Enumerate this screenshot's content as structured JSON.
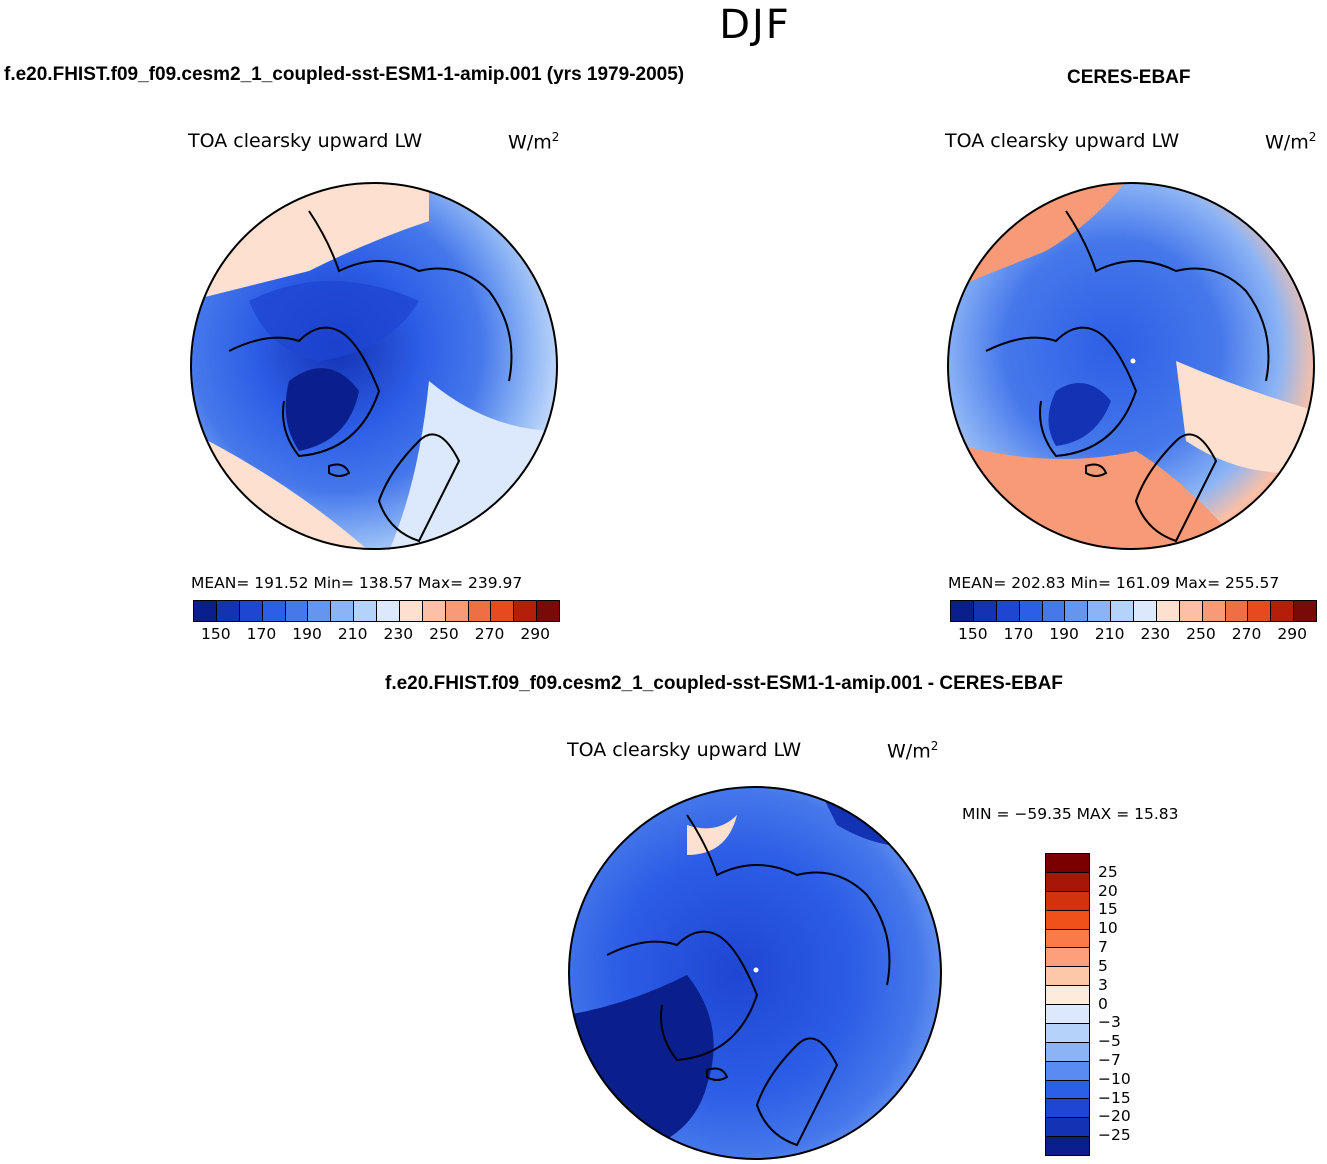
{
  "figure": {
    "season": "DJF"
  },
  "panels": [
    {
      "title": "f.e20.FHIST.f09_f09.cesm2_1_coupled-sst-ESM1-1-amip.001 (yrs 1979-2005)",
      "variable": "TOA clearsky upward LW",
      "units_base": "W/m",
      "units_sup": "2",
      "mean": "191.52",
      "min": "138.57",
      "max": "239.97",
      "stats_text": "MEAN= 191.52   Min= 138.57   Max= 239.97"
    },
    {
      "title": "CERES-EBAF",
      "variable": "TOA clearsky upward LW",
      "units_base": "W/m",
      "units_sup": "2",
      "mean": "202.83",
      "min": "161.09",
      "max": "255.57",
      "stats_text": "MEAN= 202.83   Min= 161.09   Max= 255.57"
    },
    {
      "title": "f.e20.FHIST.f09_f09.cesm2_1_coupled-sst-ESM1-1-amip.001 - CERES-EBAF",
      "variable": "TOA clearsky upward LW",
      "units_base": "W/m",
      "units_sup": "2",
      "min": "-59.35",
      "max": "15.83",
      "stats_text": "MIN = −59.35 MAX =   15.83"
    }
  ],
  "colorbars": {
    "absolute": {
      "colors": [
        "#0a1e8c",
        "#1432b4",
        "#1e46d2",
        "#2d5ee6",
        "#4678eb",
        "#6496f0",
        "#8cb4f5",
        "#b4d2fa",
        "#dce9fc",
        "#fde0cf",
        "#fbc0a6",
        "#f69a78",
        "#f06e46",
        "#e64a1e",
        "#b41e0a",
        "#7a0a0a"
      ],
      "tick_labels": [
        "150",
        "170",
        "190",
        "210",
        "230",
        "250",
        "270",
        "290"
      ]
    },
    "difference": {
      "colors": [
        "#7a0000",
        "#a8160a",
        "#d2320c",
        "#f0501a",
        "#fa7a4a",
        "#fba07a",
        "#fdc8aa",
        "#feebdc",
        "#dce9fc",
        "#b4d2fa",
        "#8cb4f5",
        "#5a8cf0",
        "#2d5ee6",
        "#1e46d2",
        "#1432b4",
        "#0a1e8c"
      ],
      "tick_labels": [
        "25",
        "20",
        "15",
        "10",
        "7",
        "5",
        "3",
        "0",
        "−3",
        "−5",
        "−7",
        "−10",
        "−15",
        "−20",
        "−25"
      ]
    }
  },
  "map_data": {
    "projection": "north polar stereographic",
    "region": "Arctic",
    "panel_count": 3
  }
}
